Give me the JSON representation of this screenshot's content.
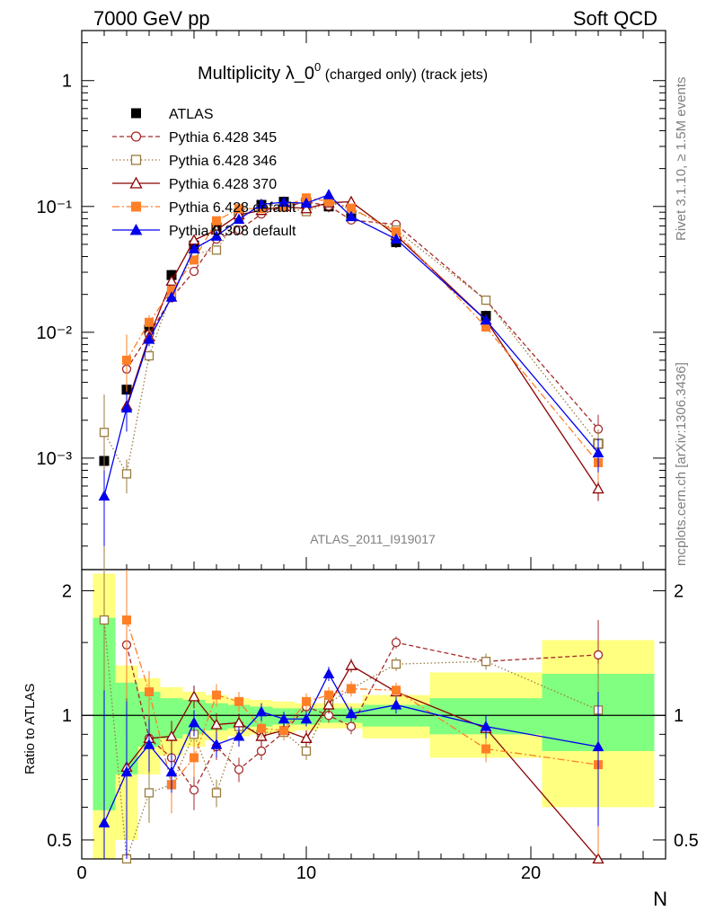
{
  "header": {
    "left": "7000 GeV pp",
    "right": "Soft QCD"
  },
  "title": {
    "main": "Multiplicity λ_0",
    "sup": "0",
    "suffix": " (charged only) (track jets)"
  },
  "side_labels": {
    "top": "Rivet 3.1.10, ≥ 1.5M events",
    "bottom": "mcplots.cern.ch [arXiv:1306.3436]"
  },
  "watermark": "ATLAS_2011_I919017",
  "xlabel": "N",
  "ratio_ylabel": "Ratio to ATLAS",
  "main_ticks": [
    "1",
    "10⁻¹",
    "10⁻²",
    "10⁻³"
  ],
  "ratio_ticks": [
    "2",
    "1",
    "0.5"
  ],
  "x_ticks": [
    "0",
    "10",
    "20"
  ],
  "chart_data": {
    "type": "scatter",
    "xlim": [
      0,
      26
    ],
    "ylim": [
      0.00013,
      2.5
    ],
    "yscale": "log",
    "ratio_ylim": [
      0.45,
      2.25
    ],
    "ratio_yscale": "log",
    "legend_position": "top-left",
    "x": [
      1,
      2,
      3,
      4,
      5,
      6,
      7,
      8,
      9,
      10,
      11,
      12,
      14,
      18,
      23
    ],
    "band_edges": [
      0.5,
      1.5,
      2.5,
      3.5,
      4.5,
      5.5,
      6.5,
      7.5,
      8.5,
      9.5,
      10.5,
      11.5,
      12.5,
      15.5,
      20.5,
      25.5
    ],
    "band_inner": [
      [
        0.59,
        1.72
      ],
      [
        0.72,
        1.2
      ],
      [
        0.84,
        1.14
      ],
      [
        0.88,
        1.1
      ],
      [
        0.9,
        1.09
      ],
      [
        0.92,
        1.07
      ],
      [
        0.93,
        1.06
      ],
      [
        0.94,
        1.05
      ],
      [
        0.95,
        1.04
      ],
      [
        0.95,
        1.04
      ],
      [
        0.96,
        1.04
      ],
      [
        0.96,
        1.04
      ],
      [
        0.94,
        1.06
      ],
      [
        0.9,
        1.1
      ],
      [
        0.82,
        1.26
      ]
    ],
    "band_outer": [
      [
        0.38,
        2.2
      ],
      [
        0.5,
        1.32
      ],
      [
        0.72,
        1.23
      ],
      [
        0.8,
        1.17
      ],
      [
        0.84,
        1.14
      ],
      [
        0.87,
        1.12
      ],
      [
        0.89,
        1.1
      ],
      [
        0.9,
        1.09
      ],
      [
        0.91,
        1.08
      ],
      [
        0.92,
        1.07
      ],
      [
        0.93,
        1.07
      ],
      [
        0.93,
        1.07
      ],
      [
        0.88,
        1.12
      ],
      [
        0.79,
        1.27
      ],
      [
        0.6,
        1.52
      ]
    ],
    "series": [
      {
        "name": "ATLAS",
        "color": "#000000",
        "marker": "filled-square",
        "line": "none",
        "values": [
          0.00095,
          0.0035,
          0.0105,
          0.0285,
          0.049,
          0.068,
          0.088,
          0.103,
          0.109,
          0.108,
          0.1,
          0.083,
          0.052,
          0.0135,
          0.0013
        ],
        "ratio": [
          1,
          1,
          1,
          1,
          1,
          1,
          1,
          1,
          1,
          1,
          1,
          1,
          1,
          1,
          1
        ]
      },
      {
        "name": "Pythia 6.428 345",
        "color": "#a52a2a",
        "marker": "open-circle",
        "line": "dashed",
        "values": [
          null,
          0.0051,
          0.0096,
          0.0188,
          0.0305,
          0.055,
          0.065,
          0.087,
          0.099,
          0.109,
          0.101,
          0.078,
          0.072,
          0.018,
          0.0017
        ],
        "ratio": [
          null,
          1.48,
          0.88,
          0.79,
          0.66,
          0.84,
          0.74,
          0.82,
          0.91,
          1.05,
          1.0,
          0.94,
          1.5,
          1.35,
          1.4
        ],
        "ratio_err": [
          null,
          0.55,
          0.12,
          0.08,
          0.07,
          0.06,
          0.05,
          0.04,
          0.04,
          0.04,
          0.04,
          0.04,
          0.05,
          0.06,
          0.3
        ]
      },
      {
        "name": "Pythia 6.428 346",
        "color": "#9a7b3f",
        "marker": "open-square",
        "line": "dotted",
        "values": [
          0.0016,
          0.00075,
          0.0065,
          0.0205,
          0.042,
          0.045,
          0.083,
          0.095,
          0.099,
          0.091,
          0.108,
          0.095,
          0.065,
          0.018,
          0.0013
        ],
        "ratio": [
          1.7,
          0.24,
          0.65,
          0.68,
          0.9,
          0.65,
          0.94,
          0.91,
          0.91,
          0.82,
          1.07,
          1.16,
          1.33,
          1.35,
          1.03
        ],
        "ratio_err": [
          1.0,
          0.3,
          0.1,
          0.07,
          0.06,
          0.05,
          0.05,
          0.04,
          0.04,
          0.04,
          0.04,
          0.04,
          0.05,
          0.06,
          0.3
        ]
      },
      {
        "name": "Pythia 6.428 370",
        "color": "#8b0000",
        "marker": "open-triangle",
        "line": "solid",
        "values": [
          null,
          0.0026,
          0.0092,
          0.0255,
          0.054,
          0.065,
          0.086,
          0.093,
          0.1,
          0.096,
          0.107,
          0.109,
          0.059,
          0.0125,
          0.00057
        ],
        "ratio": [
          null,
          0.75,
          0.88,
          0.89,
          1.11,
          0.95,
          0.96,
          0.89,
          0.92,
          0.88,
          1.06,
          1.32,
          1.14,
          0.93,
          0.44
        ],
        "ratio_err": [
          null,
          0.3,
          0.1,
          0.08,
          0.07,
          0.06,
          0.05,
          0.05,
          0.04,
          0.04,
          0.05,
          0.05,
          0.05,
          0.06,
          0.2
        ]
      },
      {
        "name": "Pythia 6.428 default",
        "color": "#ff7f27",
        "marker": "filled-square",
        "line": "dashdot",
        "values": [
          null,
          0.006,
          0.012,
          0.0215,
          0.0375,
          0.077,
          0.096,
          0.096,
          0.1,
          0.117,
          0.11,
          0.097,
          0.063,
          0.011,
          0.00092
        ],
        "ratio": [
          null,
          1.7,
          1.14,
          0.68,
          0.79,
          1.12,
          1.08,
          0.93,
          0.92,
          1.08,
          1.12,
          1.16,
          1.15,
          0.83,
          0.76
        ],
        "ratio_err": [
          null,
          0.6,
          0.14,
          0.1,
          0.08,
          0.07,
          0.06,
          0.05,
          0.05,
          0.05,
          0.05,
          0.05,
          0.05,
          0.06,
          0.3
        ]
      },
      {
        "name": "Pythia 8.308 default",
        "color": "#0000ee",
        "marker": "filled-triangle",
        "line": "solid",
        "values": [
          0.0005,
          0.0025,
          0.0088,
          0.019,
          0.046,
          0.058,
          0.079,
          0.104,
          0.108,
          0.106,
          0.124,
          0.083,
          0.055,
          0.0125,
          0.0011
        ],
        "ratio": [
          0.55,
          0.73,
          0.85,
          0.73,
          0.96,
          0.85,
          0.89,
          1.02,
          0.98,
          0.98,
          1.26,
          1.01,
          1.06,
          0.94,
          0.84
        ],
        "ratio_err": [
          0.6,
          0.35,
          0.12,
          0.08,
          0.07,
          0.06,
          0.05,
          0.05,
          0.04,
          0.04,
          0.05,
          0.04,
          0.05,
          0.06,
          0.3
        ]
      }
    ]
  }
}
